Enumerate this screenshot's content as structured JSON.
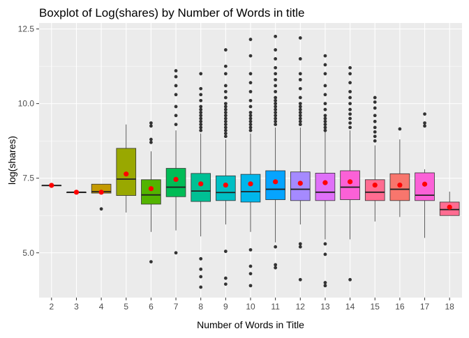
{
  "chart_data": {
    "type": "boxplot",
    "title": "Boxplot of Log(shares) by Number of Words in title",
    "xlabel": "Number of Words in Title",
    "ylabel": "log(shares)",
    "ylim": [
      3.5,
      12.7
    ],
    "yticks": [
      5.0,
      7.5,
      10.0,
      12.5
    ],
    "ytick_labels": [
      "5.0",
      "7.5",
      "10.0",
      "12.5"
    ],
    "grid": true,
    "legend": "none",
    "mean_marker_color": "#FF0000",
    "panel_background": "#EBEBEB",
    "categories": [
      "2",
      "3",
      "4",
      "5",
      "6",
      "7",
      "8",
      "9",
      "10",
      "11",
      "12",
      "13",
      "14",
      "15",
      "16",
      "17",
      "18"
    ],
    "boxes": [
      {
        "category": "2",
        "color": "#F8766D",
        "whisker_low": 7.26,
        "q1": 7.26,
        "median": 7.26,
        "q3": 7.26,
        "whisker_high": 7.26,
        "mean": 7.26,
        "outliers": []
      },
      {
        "category": "3",
        "color": "#E38900",
        "whisker_low": 7.03,
        "q1": 7.03,
        "median": 7.03,
        "q3": 7.03,
        "whisker_high": 7.03,
        "mean": 7.03,
        "outliers": []
      },
      {
        "category": "4",
        "color": "#C49A00",
        "whisker_low": 7.0,
        "q1": 7.0,
        "median": 7.05,
        "q3": 7.3,
        "whisker_high": 7.3,
        "mean": 7.03,
        "outliers": [
          6.47
        ]
      },
      {
        "category": "5",
        "color": "#99A800",
        "whisker_low": 6.35,
        "q1": 6.92,
        "median": 7.47,
        "q3": 8.5,
        "whisker_high": 9.3,
        "mean": 7.64,
        "outliers": []
      },
      {
        "category": "6",
        "color": "#53B400",
        "whisker_low": 5.7,
        "q1": 6.63,
        "median": 6.94,
        "q3": 7.45,
        "whisker_high": 8.4,
        "mean": 7.15,
        "outliers": [
          4.7,
          8.7,
          8.8,
          9.25,
          9.35
        ]
      },
      {
        "category": "7",
        "color": "#00BC56",
        "whisker_low": 5.75,
        "q1": 6.88,
        "median": 7.2,
        "q3": 7.83,
        "whisker_high": 9.1,
        "mean": 7.46,
        "outliers": [
          5.0,
          9.3,
          9.6,
          9.9,
          10.3,
          10.6,
          10.9,
          11.1
        ]
      },
      {
        "category": "8",
        "color": "#00C094",
        "whisker_low": 5.55,
        "q1": 6.72,
        "median": 7.07,
        "q3": 7.66,
        "whisker_high": 9.0,
        "mean": 7.31,
        "outliers": [
          3.85,
          4.2,
          4.45,
          4.8,
          9.1,
          9.2,
          9.3,
          9.4,
          9.5,
          9.6,
          9.7,
          9.8,
          9.9,
          10.1,
          10.3,
          10.5,
          11.0
        ]
      },
      {
        "category": "9",
        "color": "#00BFC4",
        "whisker_low": 5.95,
        "q1": 6.75,
        "median": 7.02,
        "q3": 7.58,
        "whisker_high": 8.8,
        "mean": 7.27,
        "outliers": [
          3.95,
          4.15,
          5.05,
          8.9,
          9.0,
          9.1,
          9.2,
          9.3,
          9.4,
          9.5,
          9.6,
          9.7,
          9.8,
          9.9,
          10.0,
          10.2,
          10.4,
          10.6,
          11.0,
          11.25,
          11.8
        ]
      },
      {
        "category": "10",
        "color": "#00B6EB",
        "whisker_low": 5.7,
        "q1": 6.7,
        "median": 7.05,
        "q3": 7.63,
        "whisker_high": 9.0,
        "mean": 7.31,
        "outliers": [
          3.9,
          4.3,
          4.55,
          5.1,
          9.1,
          9.2,
          9.3,
          9.4,
          9.5,
          9.6,
          9.7,
          9.9,
          10.1,
          10.4,
          10.7,
          11.0,
          11.6,
          12.15
        ]
      },
      {
        "category": "11",
        "color": "#06A4FF",
        "whisker_low": 5.35,
        "q1": 6.78,
        "median": 7.13,
        "q3": 7.75,
        "whisker_high": 9.2,
        "mean": 7.38,
        "outliers": [
          4.5,
          4.6,
          5.2,
          9.3,
          9.4,
          9.5,
          9.6,
          9.7,
          9.8,
          9.9,
          10.0,
          10.1,
          10.2,
          10.4,
          10.6,
          10.8,
          11.0,
          11.2,
          11.5,
          11.8,
          12.25
        ]
      },
      {
        "category": "12",
        "color": "#A58AFF",
        "whisker_low": 5.95,
        "q1": 6.75,
        "median": 7.13,
        "q3": 7.71,
        "whisker_high": 9.2,
        "mean": 7.33,
        "outliers": [
          4.1,
          5.2,
          5.3,
          9.3,
          9.4,
          9.5,
          9.6,
          9.7,
          9.8,
          9.9,
          10.0,
          10.2,
          10.5,
          10.8,
          11.0,
          11.5,
          12.2
        ]
      },
      {
        "category": "13",
        "color": "#DF70F8",
        "whisker_low": 5.45,
        "q1": 6.75,
        "median": 7.03,
        "q3": 7.67,
        "whisker_high": 9.05,
        "mean": 7.35,
        "outliers": [
          3.9,
          4.0,
          4.95,
          5.3,
          9.1,
          9.2,
          9.3,
          9.4,
          9.5,
          9.6,
          9.8,
          10.0,
          10.3,
          10.6,
          11.0,
          11.3,
          11.6
        ]
      },
      {
        "category": "14",
        "color": "#FB61D7",
        "whisker_low": 5.45,
        "q1": 6.78,
        "median": 7.2,
        "q3": 7.75,
        "whisker_high": 9.1,
        "mean": 7.38,
        "outliers": [
          4.1,
          9.2,
          9.35,
          9.5,
          9.65,
          9.8,
          10.0,
          10.2,
          10.4,
          10.7,
          11.0,
          11.2
        ]
      },
      {
        "category": "15",
        "color": "#FF6C91",
        "whisker_low": 6.05,
        "q1": 6.75,
        "median": 7.03,
        "q3": 7.45,
        "whisker_high": 8.6,
        "mean": 7.27,
        "outliers": [
          8.75,
          8.9,
          9.05,
          9.2,
          9.4,
          9.6,
          9.85,
          10.05,
          10.2
        ]
      },
      {
        "category": "16",
        "color": "#F8766D",
        "whisker_low": 6.2,
        "q1": 6.75,
        "median": 7.13,
        "q3": 7.65,
        "whisker_high": 8.8,
        "mean": 7.27,
        "outliers": [
          9.15
        ]
      },
      {
        "category": "17",
        "color": "#FB61D7",
        "whisker_low": 5.5,
        "q1": 6.75,
        "median": 6.93,
        "q3": 7.68,
        "whisker_high": 7.8,
        "mean": 7.3,
        "outliers": [
          9.25,
          9.35,
          9.65
        ]
      },
      {
        "category": "18",
        "color": "#FF6C91",
        "whisker_low": 6.25,
        "q1": 6.25,
        "median": 6.45,
        "q3": 6.7,
        "whisker_high": 7.05,
        "mean": 6.53,
        "outliers": []
      }
    ]
  }
}
